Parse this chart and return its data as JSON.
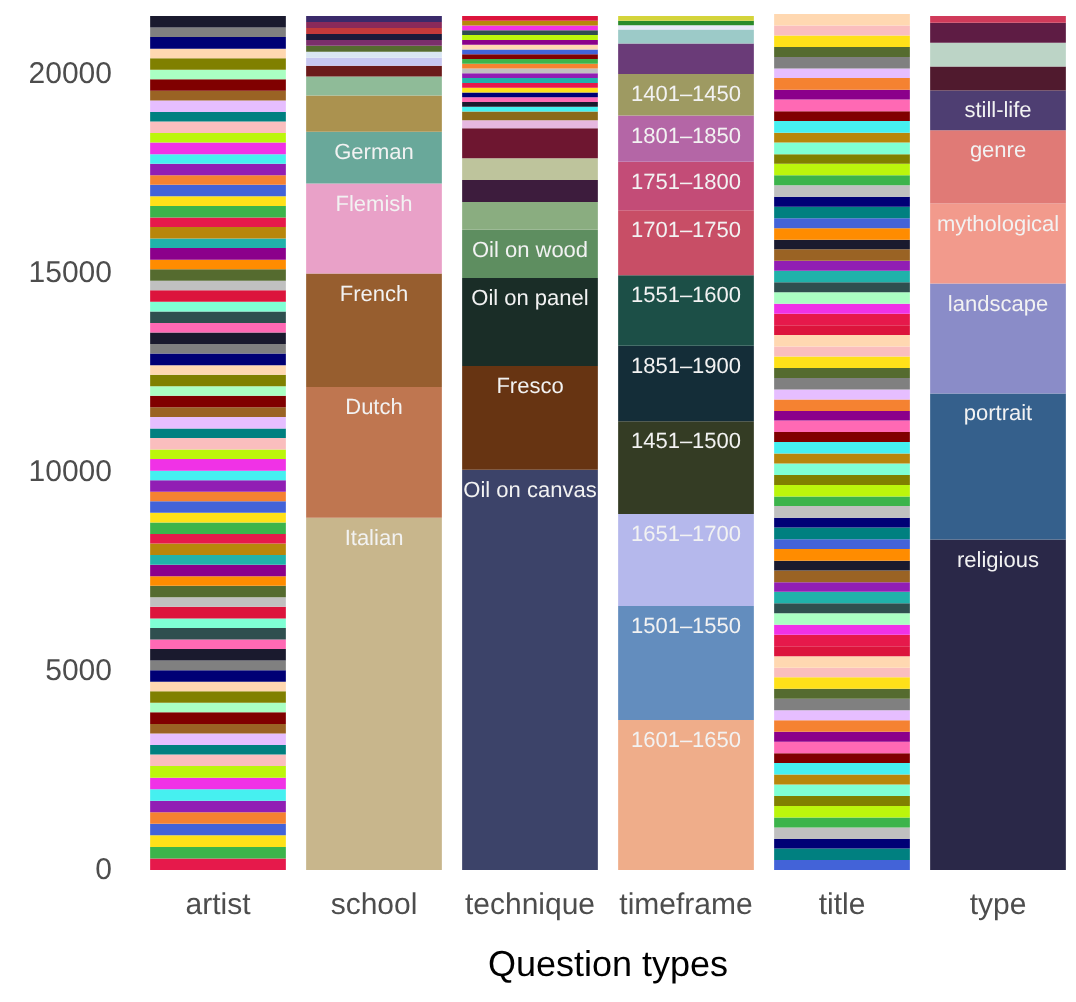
{
  "chart_data": {
    "type": "bar",
    "stacked": true,
    "xlabel": "Question types",
    "categories": [
      "artist",
      "school",
      "technique",
      "timeframe",
      "title",
      "type"
    ],
    "ylim": [
      0,
      21500
    ],
    "yticks": [
      0,
      5000,
      10000,
      15000,
      20000
    ],
    "series": [
      {
        "values": [
          290,
          8850,
          10050,
          3770,
          250,
          8300
        ],
        "colors": [
          "#e6194b",
          "#c8b68c",
          "#3c4369",
          "#efad8a",
          "#4363d8",
          "#2a2848"
        ],
        "value_labels": [
          null,
          "Italian",
          "Oil on canvas",
          "1601–1650",
          null,
          "religious"
        ]
      },
      {
        "values": [
          290,
          3280,
          2610,
          2860,
          290,
          3670
        ],
        "colors": [
          "#3cb44b",
          "#bf7650",
          "#673412",
          "#638dbe",
          "#008080",
          "#35608c"
        ],
        "value_labels": [
          null,
          "Dutch",
          "Fresco",
          "1501–1550",
          null,
          "portrait"
        ]
      },
      {
        "values": [
          290,
          2850,
          2210,
          2310,
          240,
          2760
        ],
        "colors": [
          "#ffe119",
          "#975e2f",
          "#1a2d27",
          "#b5b8ec",
          "#000075",
          "#8a8cc8"
        ],
        "value_labels": [
          null,
          "French",
          "Oil on panel",
          "1651–1700",
          null,
          "landscape"
        ]
      },
      {
        "values": [
          290,
          2260,
          1210,
          2330,
          290,
          2010
        ],
        "colors": [
          "#4363d8",
          "#e9a1c8",
          "#5e8e60",
          "#343c24",
          "#c0c0c0",
          "#f29a8c"
        ],
        "value_labels": [
          null,
          "Flemish",
          "Oil on wood",
          "1451–1500",
          null,
          "mythological"
        ]
      },
      {
        "values": [
          290,
          1300,
          700,
          1900,
          250,
          1840
        ],
        "colors": [
          "#f58231",
          "#69a89a",
          "#8aad80",
          "#142d38",
          "#3cb44b",
          "#e07a76"
        ],
        "value_labels": [
          null,
          "German",
          null,
          "1851–1900",
          null,
          "genre"
        ]
      },
      {
        "values": [
          290,
          910,
          550,
          1770,
          290,
          1000
        ],
        "colors": [
          "#911eb4",
          "#ab924f",
          "#3d1c3d",
          "#1c4f47",
          "#bcf60c",
          "#4e3e72"
        ],
        "value_labels": [
          null,
          null,
          null,
          "1551–1600",
          null,
          "still-life"
        ]
      },
      {
        "values": [
          290,
          480,
          550,
          1630,
          250,
          600
        ],
        "colors": [
          "#46f0f0",
          "#8fbb98",
          "#bec49c",
          "#c84e66",
          "#808000",
          "#501a2e"
        ],
        "value_labels": [
          null,
          null,
          null,
          "1701–1750",
          null,
          null
        ]
      },
      {
        "values": [
          290,
          270,
          750,
          1220,
          290,
          600
        ],
        "colors": [
          "#f032e6",
          "#6b1a1a",
          "#6e1630",
          "#c34c77",
          "#7fffd4",
          "#bcd4c6"
        ],
        "value_labels": [
          null,
          null,
          null,
          "1751–1800",
          null,
          null
        ]
      },
      {
        "values": [
          290,
          200,
          200,
          1160,
          250,
          500
        ],
        "colors": [
          "#bcf60c",
          "#c7c7f0",
          "#e6b8e0",
          "#b466a6",
          "#b8860b",
          "#5e1c44"
        ],
        "value_labels": [
          null,
          null,
          null,
          "1801–1850",
          null,
          null
        ]
      },
      {
        "values": [
          290,
          150,
          220,
          1040,
          290,
          170
        ],
        "colors": [
          "#fabebe",
          "#d9e6f2",
          "#8a6a1a",
          "#9e9a62",
          "#46f0f0",
          "#d03a5a"
        ],
        "value_labels": [
          null,
          null,
          null,
          "1401–1450",
          null,
          null
        ]
      },
      {
        "values": [
          240,
          150,
          120,
          770,
          240,
          null
        ],
        "colors": [
          "#008080",
          "#556b2f",
          "#46f0f0",
          "#6a3b78",
          "#800000",
          null
        ]
      },
      {
        "values": [
          290,
          150,
          120,
          350,
          290,
          null
        ],
        "colors": [
          "#e6beff",
          "#7a2f6b",
          "#1a1a2e",
          "#9ccac8",
          "#ff69b4",
          null
        ]
      },
      {
        "values": [
          240,
          150,
          120,
          110,
          250,
          null
        ],
        "colors": [
          "#9a6324",
          "#1a1a3a",
          "#ff69b4",
          "#e8e8f8",
          "#8b008b",
          null
        ]
      },
      {
        "values": [
          290,
          150,
          120,
          110,
          290,
          null
        ],
        "colors": [
          "#800000",
          "#c43a3a",
          "#000075",
          "#2a8a2a",
          "#f58231",
          null
        ]
      },
      {
        "values": [
          240,
          150,
          120,
          120,
          250,
          null
        ],
        "colors": [
          "#aaffc3",
          "#8a2a5a",
          "#ffe119",
          "#d4d43a",
          "#e6beff",
          null
        ]
      },
      {
        "values": [
          290,
          150,
          120,
          null,
          290,
          null
        ],
        "colors": [
          "#808000",
          "#3a2a6a",
          "#e6194b",
          null,
          "#808080",
          null
        ]
      },
      {
        "values": [
          240,
          null,
          120,
          null,
          250,
          null
        ],
        "colors": [
          "#ffd8b1",
          null,
          "#20b2aa",
          null,
          "#556b2f",
          null
        ]
      },
      {
        "values": [
          290,
          null,
          120,
          null,
          290,
          null
        ],
        "colors": [
          "#000075",
          null,
          "#911eb4",
          null,
          "#ffe119",
          null
        ]
      },
      {
        "values": [
          240,
          null,
          120,
          null,
          240,
          null
        ],
        "colors": [
          "#808080",
          null,
          "#c0c0c0",
          null,
          "#fabebe",
          null
        ]
      },
      {
        "values": [
          290,
          null,
          120,
          null,
          290,
          null
        ],
        "colors": [
          "#1a1a2e",
          null,
          "#f58231",
          null,
          "#ffd8b1",
          null
        ]
      },
      {
        "values": [
          240,
          null,
          120,
          null,
          250,
          null
        ],
        "colors": [
          "#ff69b4",
          null,
          "#3cb44b",
          null,
          "#dc143c",
          null
        ]
      },
      {
        "values": [
          290,
          null,
          120,
          null,
          290,
          null
        ],
        "colors": [
          "#2f4f4f",
          null,
          "#800000",
          null,
          "#e6194b",
          null
        ]
      },
      {
        "values": [
          240,
          null,
          120,
          null,
          250,
          null
        ],
        "colors": [
          "#7fffd4",
          null,
          "#4363d8",
          null,
          "#f032e6",
          null
        ]
      },
      {
        "values": [
          290,
          null,
          120,
          null,
          290,
          null
        ],
        "colors": [
          "#dc143c",
          null,
          "#ffd8b1",
          null,
          "#aaffc3",
          null
        ]
      },
      {
        "values": [
          240,
          null,
          120,
          null,
          250,
          null
        ],
        "colors": [
          "#c0c0c0",
          null,
          "#8b008b",
          null,
          "#2f4f4f",
          null
        ]
      },
      {
        "values": [
          290,
          null,
          120,
          null,
          290,
          null
        ],
        "colors": [
          "#556b2f",
          null,
          "#bcf60c",
          null,
          "#20b2aa",
          null
        ]
      },
      {
        "values": [
          240,
          null,
          120,
          null,
          240,
          null
        ],
        "colors": [
          "#ff8c00",
          null,
          "#2f4f4f",
          null,
          "#911eb4",
          null
        ]
      },
      {
        "values": [
          290,
          null,
          120,
          null,
          290,
          null
        ],
        "colors": [
          "#8b008b",
          null,
          "#f032e6",
          null,
          "#9a6324",
          null
        ]
      },
      {
        "values": [
          240,
          null,
          120,
          null,
          250,
          null
        ],
        "colors": [
          "#20b2aa",
          null,
          "#b8860b",
          null,
          "#1a1a2e",
          null
        ]
      },
      {
        "values": [
          290,
          null,
          120,
          null,
          290,
          null
        ],
        "colors": [
          "#b8860b",
          null,
          "#dc143c",
          null,
          "#ff8c00",
          null
        ]
      },
      {
        "values": [
          240,
          null,
          null,
          null,
          250,
          null
        ],
        "colors": [
          "#e6194b",
          null,
          null,
          null,
          "#4363d8",
          null
        ]
      },
      {
        "values": [
          290,
          null,
          null,
          null,
          290,
          null
        ],
        "colors": [
          "#3cb44b",
          null,
          null,
          null,
          "#008080",
          null
        ]
      },
      {
        "values": [
          240,
          null,
          null,
          null,
          250,
          null
        ],
        "colors": [
          "#ffe119",
          null,
          null,
          null,
          "#000075",
          null
        ]
      },
      {
        "values": [
          290,
          null,
          null,
          null,
          290,
          null
        ],
        "colors": [
          "#4363d8",
          null,
          null,
          null,
          "#c0c0c0",
          null
        ]
      },
      {
        "values": [
          240,
          null,
          null,
          null,
          240,
          null
        ],
        "colors": [
          "#f58231",
          null,
          null,
          null,
          "#3cb44b",
          null
        ]
      },
      {
        "values": [
          290,
          null,
          null,
          null,
          290,
          null
        ],
        "colors": [
          "#911eb4",
          null,
          null,
          null,
          "#bcf60c",
          null
        ]
      },
      {
        "values": [
          240,
          null,
          null,
          null,
          250,
          null
        ],
        "colors": [
          "#46f0f0",
          null,
          null,
          null,
          "#808000",
          null
        ]
      },
      {
        "values": [
          290,
          null,
          null,
          null,
          290,
          null
        ],
        "colors": [
          "#f032e6",
          null,
          null,
          null,
          "#7fffd4",
          null
        ]
      },
      {
        "values": [
          240,
          null,
          null,
          null,
          250,
          null
        ],
        "colors": [
          "#bcf60c",
          null,
          null,
          null,
          "#b8860b",
          null
        ]
      },
      {
        "values": [
          290,
          null,
          null,
          null,
          290,
          null
        ],
        "colors": [
          "#fabebe",
          null,
          null,
          null,
          "#46f0f0",
          null
        ]
      },
      {
        "values": [
          240,
          null,
          null,
          null,
          250,
          null
        ],
        "colors": [
          "#008080",
          null,
          null,
          null,
          "#800000",
          null
        ]
      },
      {
        "values": [
          290,
          null,
          null,
          null,
          290,
          null
        ],
        "colors": [
          "#e6beff",
          null,
          null,
          null,
          "#ff69b4",
          null
        ]
      },
      {
        "values": [
          240,
          null,
          null,
          null,
          240,
          null
        ],
        "colors": [
          "#9a6324",
          null,
          null,
          null,
          "#8b008b",
          null
        ]
      },
      {
        "values": [
          290,
          null,
          null,
          null,
          290,
          null
        ],
        "colors": [
          "#800000",
          null,
          null,
          null,
          "#f58231",
          null
        ]
      },
      {
        "values": [
          240,
          null,
          null,
          null,
          250,
          null
        ],
        "colors": [
          "#aaffc3",
          null,
          null,
          null,
          "#e6beff",
          null
        ]
      },
      {
        "values": [
          290,
          null,
          null,
          null,
          290,
          null
        ],
        "colors": [
          "#808000",
          null,
          null,
          null,
          "#808080",
          null
        ]
      },
      {
        "values": [
          240,
          null,
          null,
          null,
          250,
          null
        ],
        "colors": [
          "#ffd8b1",
          null,
          null,
          null,
          "#556b2f",
          null
        ]
      },
      {
        "values": [
          290,
          null,
          null,
          null,
          290,
          null
        ],
        "colors": [
          "#000075",
          null,
          null,
          null,
          "#ffe119",
          null
        ]
      },
      {
        "values": [
          240,
          null,
          null,
          null,
          250,
          null
        ],
        "colors": [
          "#808080",
          null,
          null,
          null,
          "#fabebe",
          null
        ]
      },
      {
        "values": [
          290,
          null,
          null,
          null,
          290,
          null
        ],
        "colors": [
          "#1a1a2e",
          null,
          null,
          null,
          "#ffd8b1",
          null
        ]
      },
      {
        "values": [
          240,
          null,
          null,
          null,
          240,
          null
        ],
        "colors": [
          "#ff69b4",
          null,
          null,
          null,
          "#dc143c",
          null
        ]
      },
      {
        "values": [
          290,
          null,
          null,
          null,
          290,
          null
        ],
        "colors": [
          "#2f4f4f",
          null,
          null,
          null,
          "#e6194b",
          null
        ]
      },
      {
        "values": [
          240,
          null,
          null,
          null,
          250,
          null
        ],
        "colors": [
          "#7fffd4",
          null,
          null,
          null,
          "#f032e6",
          null
        ]
      },
      {
        "values": [
          290,
          null,
          null,
          null,
          290,
          null
        ],
        "colors": [
          "#dc143c",
          null,
          null,
          null,
          "#aaffc3",
          null
        ]
      },
      {
        "values": [
          240,
          null,
          null,
          null,
          250,
          null
        ],
        "colors": [
          "#c0c0c0",
          null,
          null,
          null,
          "#2f4f4f",
          null
        ]
      },
      {
        "values": [
          290,
          null,
          null,
          null,
          290,
          null
        ],
        "colors": [
          "#556b2f",
          null,
          null,
          null,
          "#20b2aa",
          null
        ]
      },
      {
        "values": [
          240,
          null,
          null,
          null,
          250,
          null
        ],
        "colors": [
          "#ff8c00",
          null,
          null,
          null,
          "#911eb4",
          null
        ]
      },
      {
        "values": [
          290,
          null,
          null,
          null,
          290,
          null
        ],
        "colors": [
          "#8b008b",
          null,
          null,
          null,
          "#9a6324",
          null
        ]
      },
      {
        "values": [
          240,
          null,
          null,
          null,
          240,
          null
        ],
        "colors": [
          "#20b2aa",
          null,
          null,
          null,
          "#1a1a2e",
          null
        ]
      },
      {
        "values": [
          290,
          null,
          null,
          null,
          290,
          null
        ],
        "colors": [
          "#b8860b",
          null,
          null,
          null,
          "#ff8c00",
          null
        ]
      },
      {
        "values": [
          240,
          null,
          null,
          null,
          250,
          null
        ],
        "colors": [
          "#e6194b",
          null,
          null,
          null,
          "#4363d8",
          null
        ]
      },
      {
        "values": [
          290,
          null,
          null,
          null,
          290,
          null
        ],
        "colors": [
          "#3cb44b",
          null,
          null,
          null,
          "#008080",
          null
        ]
      },
      {
        "values": [
          240,
          null,
          null,
          null,
          250,
          null
        ],
        "colors": [
          "#ffe119",
          null,
          null,
          null,
          "#000075",
          null
        ]
      },
      {
        "values": [
          290,
          null,
          null,
          null,
          290,
          null
        ],
        "colors": [
          "#4363d8",
          null,
          null,
          null,
          "#c0c0c0",
          null
        ]
      },
      {
        "values": [
          240,
          null,
          null,
          null,
          250,
          null
        ],
        "colors": [
          "#f58231",
          null,
          null,
          null,
          "#3cb44b",
          null
        ]
      },
      {
        "values": [
          290,
          null,
          null,
          null,
          290,
          null
        ],
        "colors": [
          "#911eb4",
          null,
          null,
          null,
          "#bcf60c",
          null
        ]
      },
      {
        "values": [
          240,
          null,
          null,
          null,
          240,
          null
        ],
        "colors": [
          "#46f0f0",
          null,
          null,
          null,
          "#808000",
          null
        ]
      },
      {
        "values": [
          290,
          null,
          null,
          null,
          290,
          null
        ],
        "colors": [
          "#f032e6",
          null,
          null,
          null,
          "#7fffd4",
          null
        ]
      },
      {
        "values": [
          240,
          null,
          null,
          null,
          250,
          null
        ],
        "colors": [
          "#bcf60c",
          null,
          null,
          null,
          "#b8860b",
          null
        ]
      },
      {
        "values": [
          290,
          null,
          null,
          null,
          290,
          null
        ],
        "colors": [
          "#fabebe",
          null,
          null,
          null,
          "#46f0f0",
          null
        ]
      },
      {
        "values": [
          240,
          null,
          null,
          null,
          250,
          null
        ],
        "colors": [
          "#008080",
          null,
          null,
          null,
          "#800000",
          null
        ]
      },
      {
        "values": [
          290,
          null,
          null,
          null,
          290,
          null
        ],
        "colors": [
          "#e6beff",
          null,
          null,
          null,
          "#ff69b4",
          null
        ]
      },
      {
        "values": [
          240,
          null,
          null,
          null,
          250,
          null
        ],
        "colors": [
          "#9a6324",
          null,
          null,
          null,
          "#8b008b",
          null
        ]
      },
      {
        "values": [
          290,
          null,
          null,
          null,
          290,
          null
        ],
        "colors": [
          "#800000",
          null,
          null,
          null,
          "#f58231",
          null
        ]
      },
      {
        "values": [
          240,
          null,
          null,
          null,
          240,
          null
        ],
        "colors": [
          "#aaffc3",
          null,
          null,
          null,
          "#e6beff",
          null
        ]
      },
      {
        "values": [
          290,
          null,
          null,
          null,
          290,
          null
        ],
        "colors": [
          "#808000",
          null,
          null,
          null,
          "#808080",
          null
        ]
      },
      {
        "values": [
          240,
          null,
          null,
          null,
          250,
          null
        ],
        "colors": [
          "#ffd8b1",
          null,
          null,
          null,
          "#556b2f",
          null
        ]
      },
      {
        "values": [
          290,
          null,
          null,
          null,
          290,
          null
        ],
        "colors": [
          "#000075",
          null,
          null,
          null,
          "#ffe119",
          null
        ]
      },
      {
        "values": [
          240,
          null,
          null,
          null,
          250,
          null
        ],
        "colors": [
          "#808080",
          null,
          null,
          null,
          "#fabebe",
          null
        ]
      },
      {
        "values": [
          290,
          null,
          null,
          null,
          290,
          null
        ],
        "colors": [
          "#1a1a2e",
          null,
          null,
          null,
          "#ffd8b1",
          null
        ]
      }
    ]
  }
}
